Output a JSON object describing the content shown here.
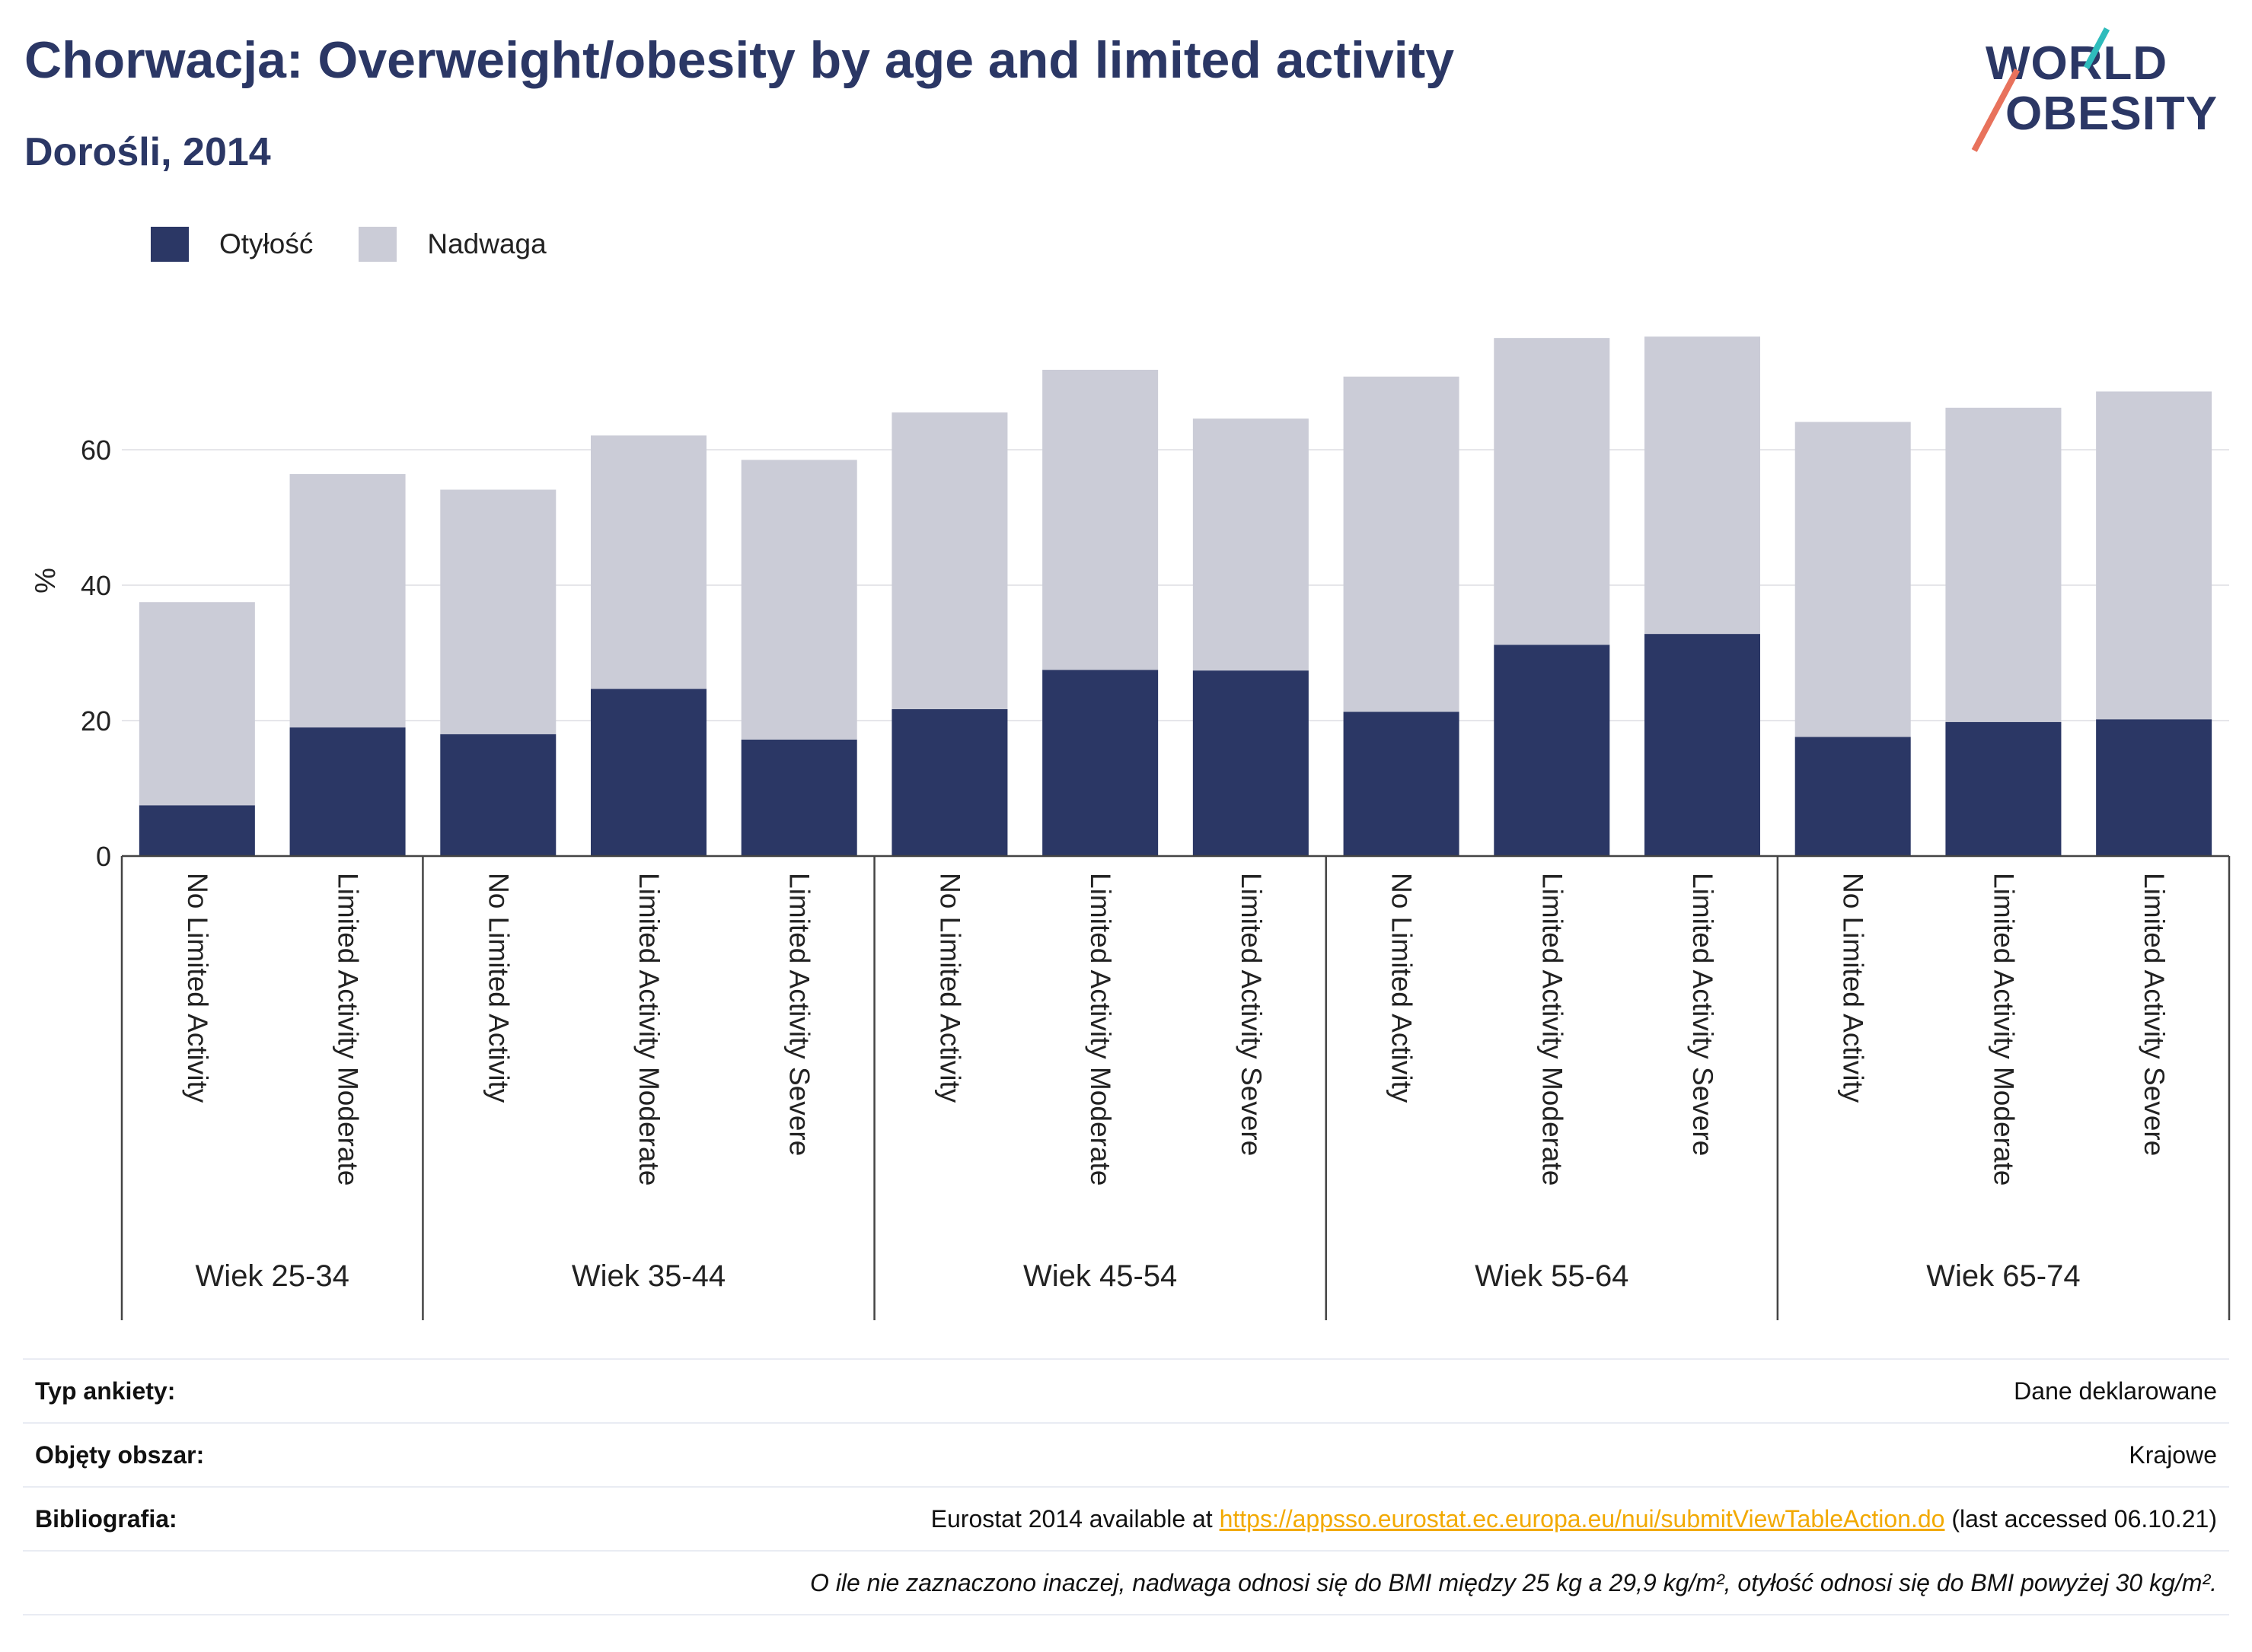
{
  "header": {
    "title": "Chorwacja: Overweight/obesity by age and limited activity",
    "subtitle": "Dorośli, 2014"
  },
  "logo": {
    "line1": "WORLD",
    "line2": "OBESITY"
  },
  "legend": [
    {
      "label": "Otyłość",
      "color": "#2b3765"
    },
    {
      "label": "Nadwaga",
      "color": "#cbccd7"
    }
  ],
  "chart_data": {
    "type": "bar",
    "stacked": true,
    "ylabel": "%",
    "ylim": [
      0,
      80
    ],
    "yticks": [
      0,
      20,
      40,
      60
    ],
    "grid": true,
    "legend_position": "top-left",
    "groups": [
      {
        "label": "Wiek 25-34",
        "categories": [
          "No Limited Activity",
          "Limited Activity Moderate"
        ]
      },
      {
        "label": "Wiek 35-44",
        "categories": [
          "No Limited Activity",
          "Limited Activity Moderate",
          "Limited Activity Severe"
        ]
      },
      {
        "label": "Wiek 45-54",
        "categories": [
          "No Limited Activity",
          "Limited Activity Moderate",
          "Limited Activity Severe"
        ]
      },
      {
        "label": "Wiek 55-64",
        "categories": [
          "No Limited Activity",
          "Limited Activity Moderate",
          "Limited Activity Severe"
        ]
      },
      {
        "label": "Wiek 65-74",
        "categories": [
          "No Limited Activity",
          "Limited Activity Moderate",
          "Limited Activity Severe"
        ]
      }
    ],
    "series": [
      {
        "name": "Otyłość",
        "color": "#2b3765",
        "values": [
          7.5,
          19.0,
          18.0,
          24.7,
          17.2,
          21.7,
          27.5,
          27.4,
          21.3,
          31.2,
          32.8,
          17.6,
          19.8,
          20.2
        ]
      },
      {
        "name": "Nadwaga",
        "color": "#cbccd7",
        "values": [
          30.0,
          37.4,
          36.1,
          37.4,
          41.3,
          43.8,
          44.3,
          37.2,
          49.5,
          45.3,
          43.9,
          46.5,
          46.4,
          48.4
        ]
      }
    ]
  },
  "info_table": {
    "survey_type_label": "Typ ankiety:",
    "survey_type_value": "Dane deklarowane",
    "coverage_label": "Objęty obszar:",
    "coverage_value": "Krajowe",
    "bibliography_label": "Bibliografia:",
    "bibliography_prefix": "Eurostat 2014 available at ",
    "bibliography_link": "https://appsso.eurostat.ec.europa.eu/nui/submitViewTableAction.do",
    "bibliography_suffix": " (last accessed 06.10.21)",
    "note": "O ile nie zaznaczono inaczej, nadwaga odnosi się do BMI między 25 kg a 29,9 kg/m², otyłość odnosi się do BMI powyżej 30 kg/m²."
  }
}
